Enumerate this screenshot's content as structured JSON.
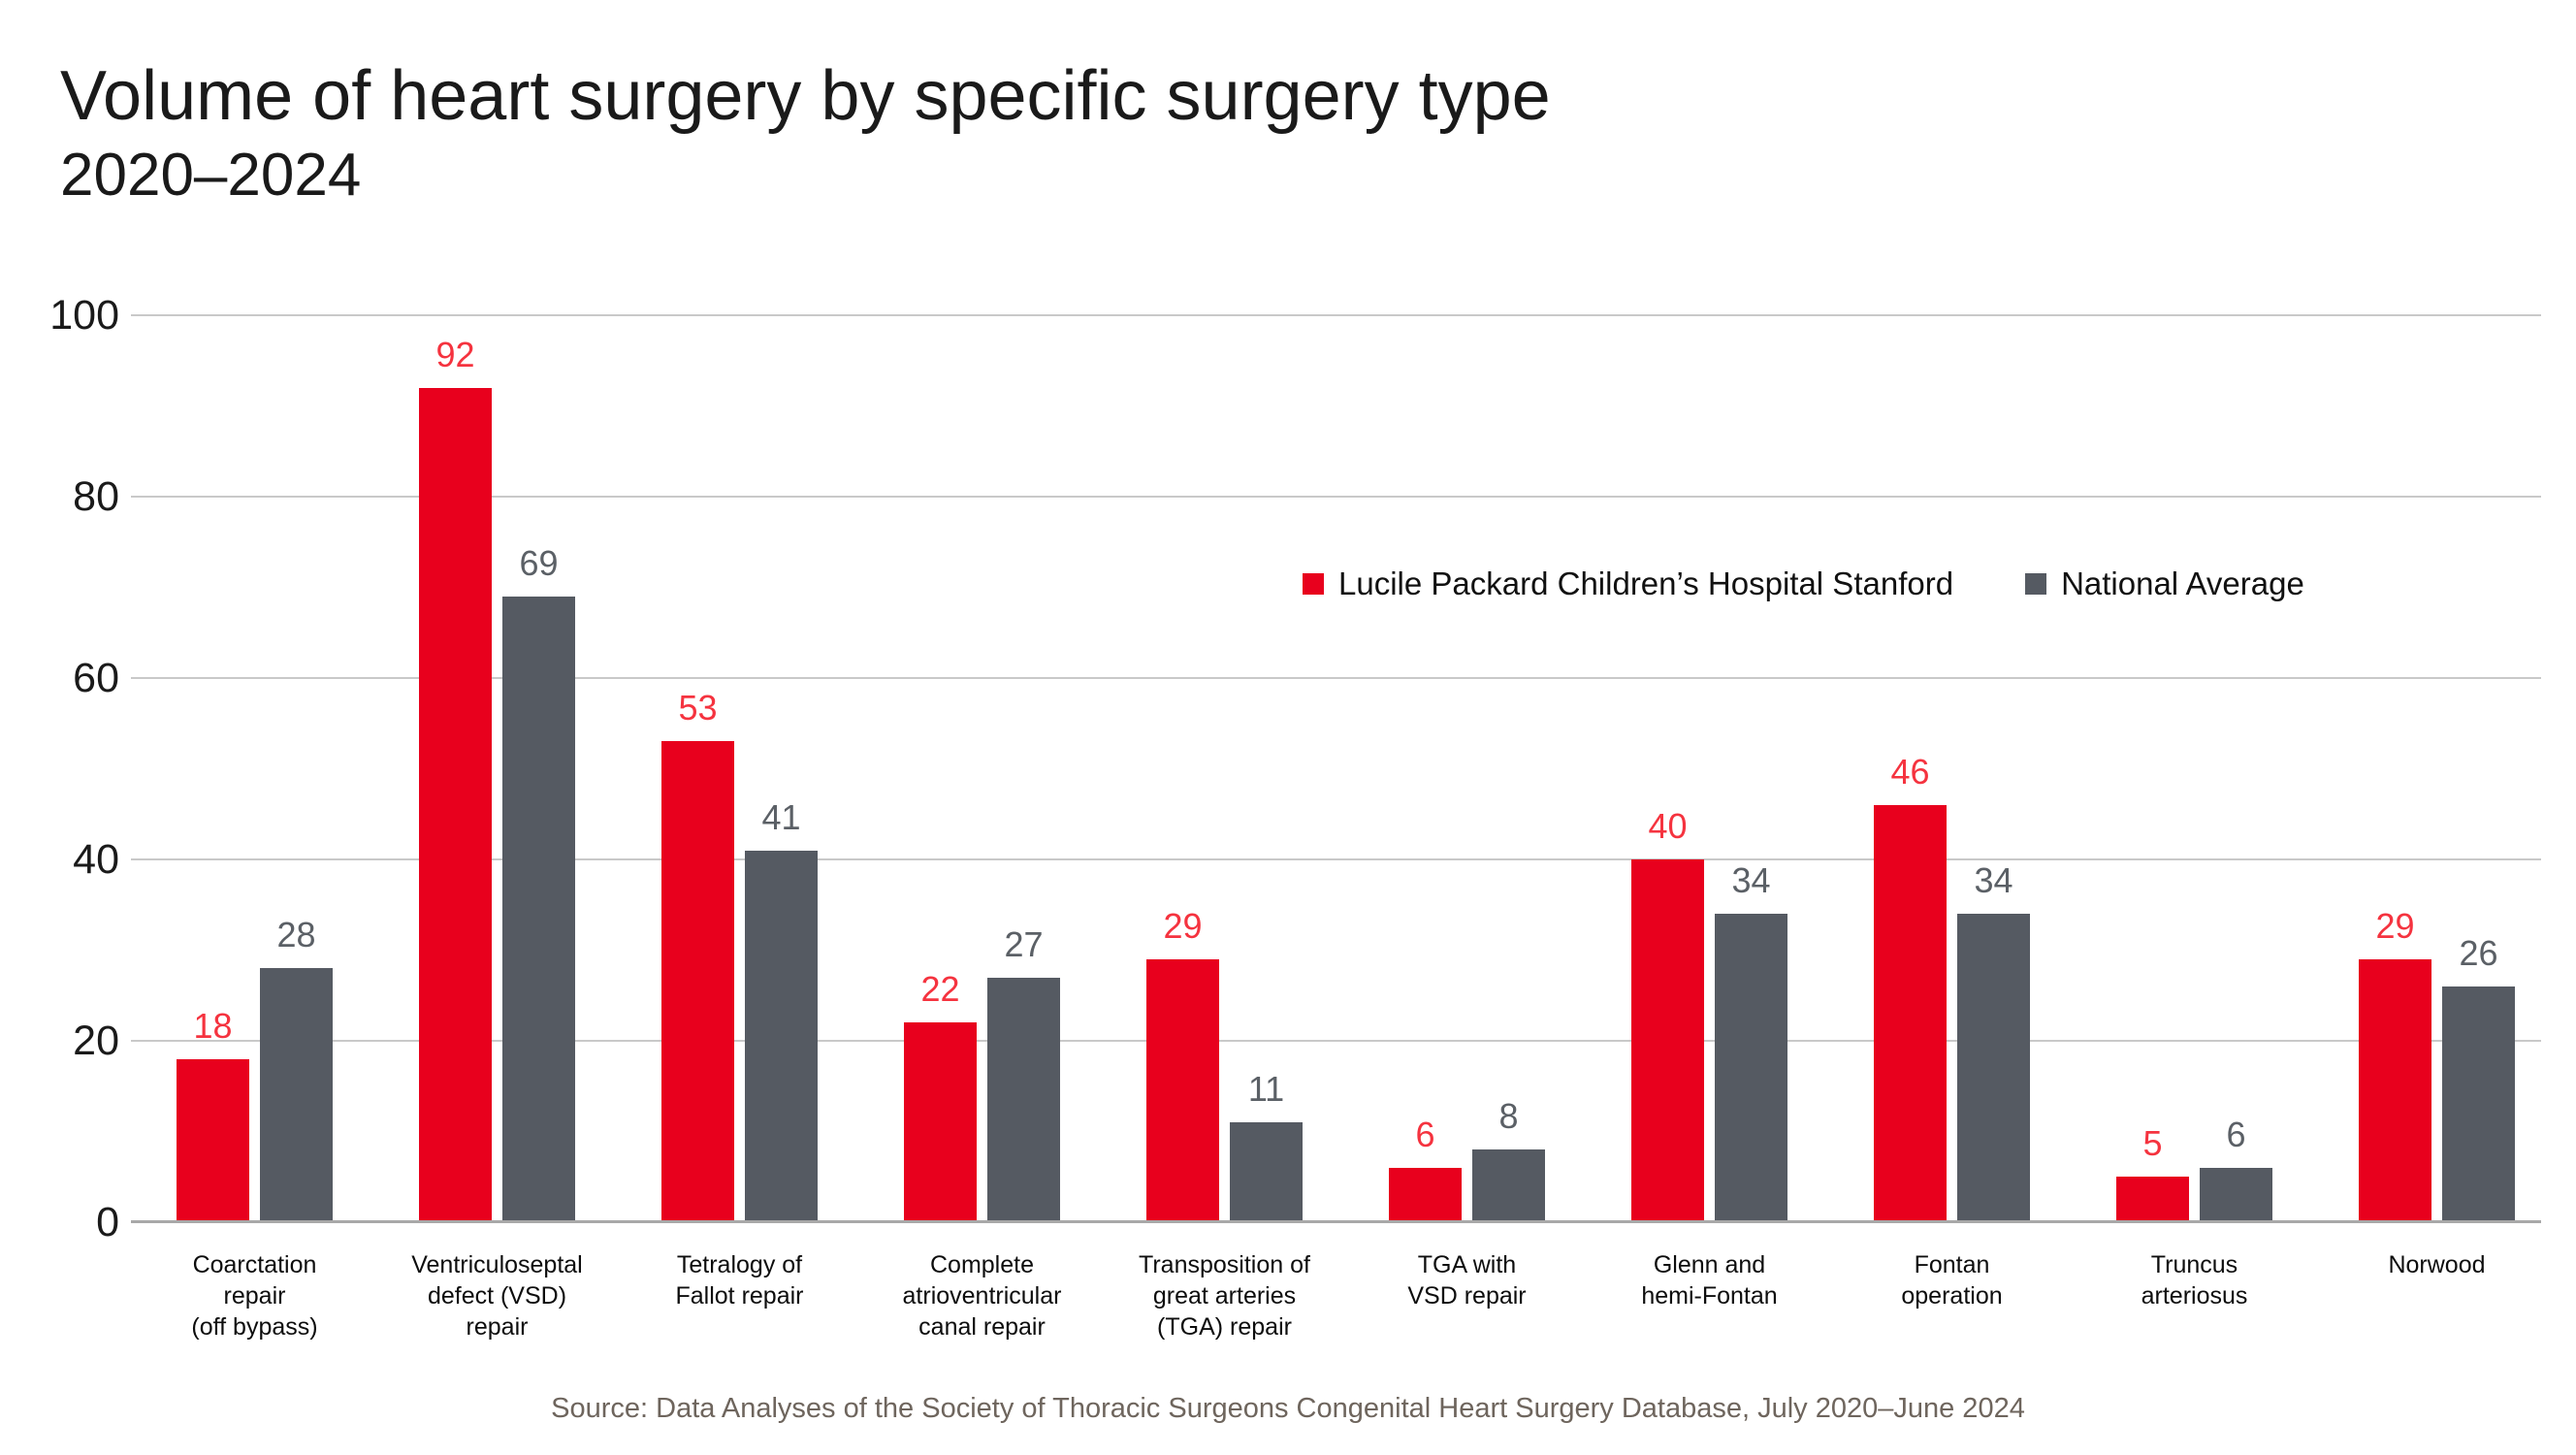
{
  "title": "Volume of heart surgery by specific surgery type",
  "subtitle": "2020–2024",
  "source": "Source: Data Analyses of the Society of Thoracic Surgeons Congenital Heart Surgery Database, July 2020–June 2024",
  "colors": {
    "hospital_bar": "#e8001d",
    "hospital_value_label": "#f5333f",
    "national_bar": "#555a62",
    "national_value_label": "#5b6066",
    "gridline": "#c9c9c9",
    "axis_line": "#a8a8a8",
    "text": "#1a1a1a",
    "source_text": "#6e655d"
  },
  "chart_data": {
    "type": "bar",
    "title": "Volume of heart surgery by specific surgery type",
    "subtitle": "2020–2024",
    "categories": [
      "Coarctation\nrepair\n(off bypass)",
      "Ventriculoseptal\ndefect (VSD)\nrepair",
      "Tetralogy of\nFallot repair",
      "Complete\natrioventricular\ncanal repair",
      "Transposition of\ngreat arteries\n(TGA) repair",
      "TGA with\nVSD repair",
      "Glenn and\nhemi-Fontan",
      "Fontan\noperation",
      "Truncus\narteriosus",
      "Norwood"
    ],
    "series": [
      {
        "name": "Lucile Packard Children’s Hospital Stanford",
        "color": "#e8001d",
        "label_color": "#f5333f",
        "values": [
          18,
          92,
          53,
          22,
          29,
          6,
          40,
          46,
          5,
          29
        ]
      },
      {
        "name": "National Average",
        "color": "#555a62",
        "label_color": "#5b6066",
        "values": [
          28,
          69,
          41,
          27,
          11,
          8,
          34,
          34,
          6,
          26
        ]
      }
    ],
    "xlabel": "",
    "ylabel": "",
    "ylim": [
      0,
      100
    ],
    "yticks": [
      0,
      20,
      40,
      60,
      80,
      100
    ],
    "grid": true,
    "legend_position": "upper-right-inside",
    "value_labels": true
  }
}
